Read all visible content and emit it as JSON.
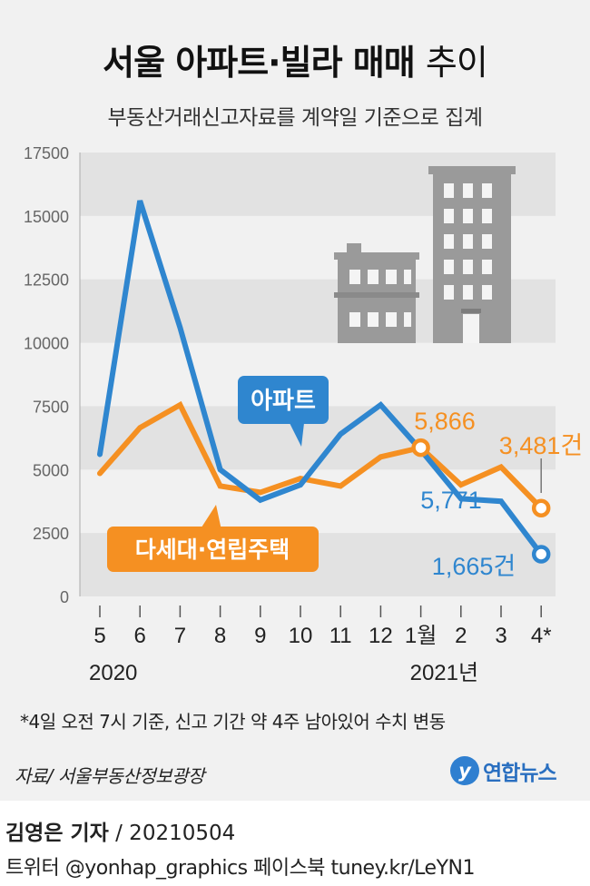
{
  "title_main": "서울 아파트·빌라 매매",
  "title_light": "추이",
  "subtitle": "부동산거래신고자료를 계약일 기준으로 집계",
  "note": "*4일 오전 7시 기준, 신고 기간 약 4주 남아있어 수치 변동",
  "source": "자료/ 서울부동산정보광장",
  "brand": {
    "logo": "y",
    "name": "연합뉴스",
    "logo_icon": "yonhap-logo-icon"
  },
  "footer": {
    "reporter": "김영은 기자",
    "date": "/ 20210504",
    "social": "트위터 @yonhap_graphics  페이스북 tuney.kr/LeYN1"
  },
  "colors": {
    "apartment": "#2f86cf",
    "villa": "#f59022",
    "band": "#e2e2e2",
    "building": "#9a9a9a",
    "window": "#f4f4f4"
  },
  "chart_data": {
    "type": "line",
    "categories": [
      "5",
      "6",
      "7",
      "8",
      "9",
      "10",
      "11",
      "12",
      "1월",
      "2",
      "3",
      "4*"
    ],
    "x_year_labels": [
      {
        "at": 0,
        "text": "2020"
      },
      {
        "at": 8,
        "text": "2021년"
      }
    ],
    "yticks": [
      0,
      2500,
      5000,
      7500,
      10000,
      12500,
      15000,
      17500
    ],
    "ylim": [
      0,
      17500
    ],
    "series": [
      {
        "name": "아파트",
        "color": "#2f86cf",
        "values": [
          5600,
          15600,
          10600,
          5000,
          3800,
          4400,
          6400,
          7550,
          5771,
          3850,
          3750,
          1665
        ]
      },
      {
        "name": "다세대·연립주택",
        "color": "#f59022",
        "values": [
          4850,
          6650,
          7550,
          4350,
          4100,
          4650,
          4350,
          5500,
          5866,
          4400,
          5100,
          3481
        ]
      }
    ],
    "data_labels": [
      {
        "series": 0,
        "index": 8,
        "text": "5,771"
      },
      {
        "series": 1,
        "index": 8,
        "text": "5,866"
      },
      {
        "series": 1,
        "index": 11,
        "text": "3,481건"
      },
      {
        "series": 0,
        "index": 11,
        "text": "1,665건"
      }
    ]
  }
}
